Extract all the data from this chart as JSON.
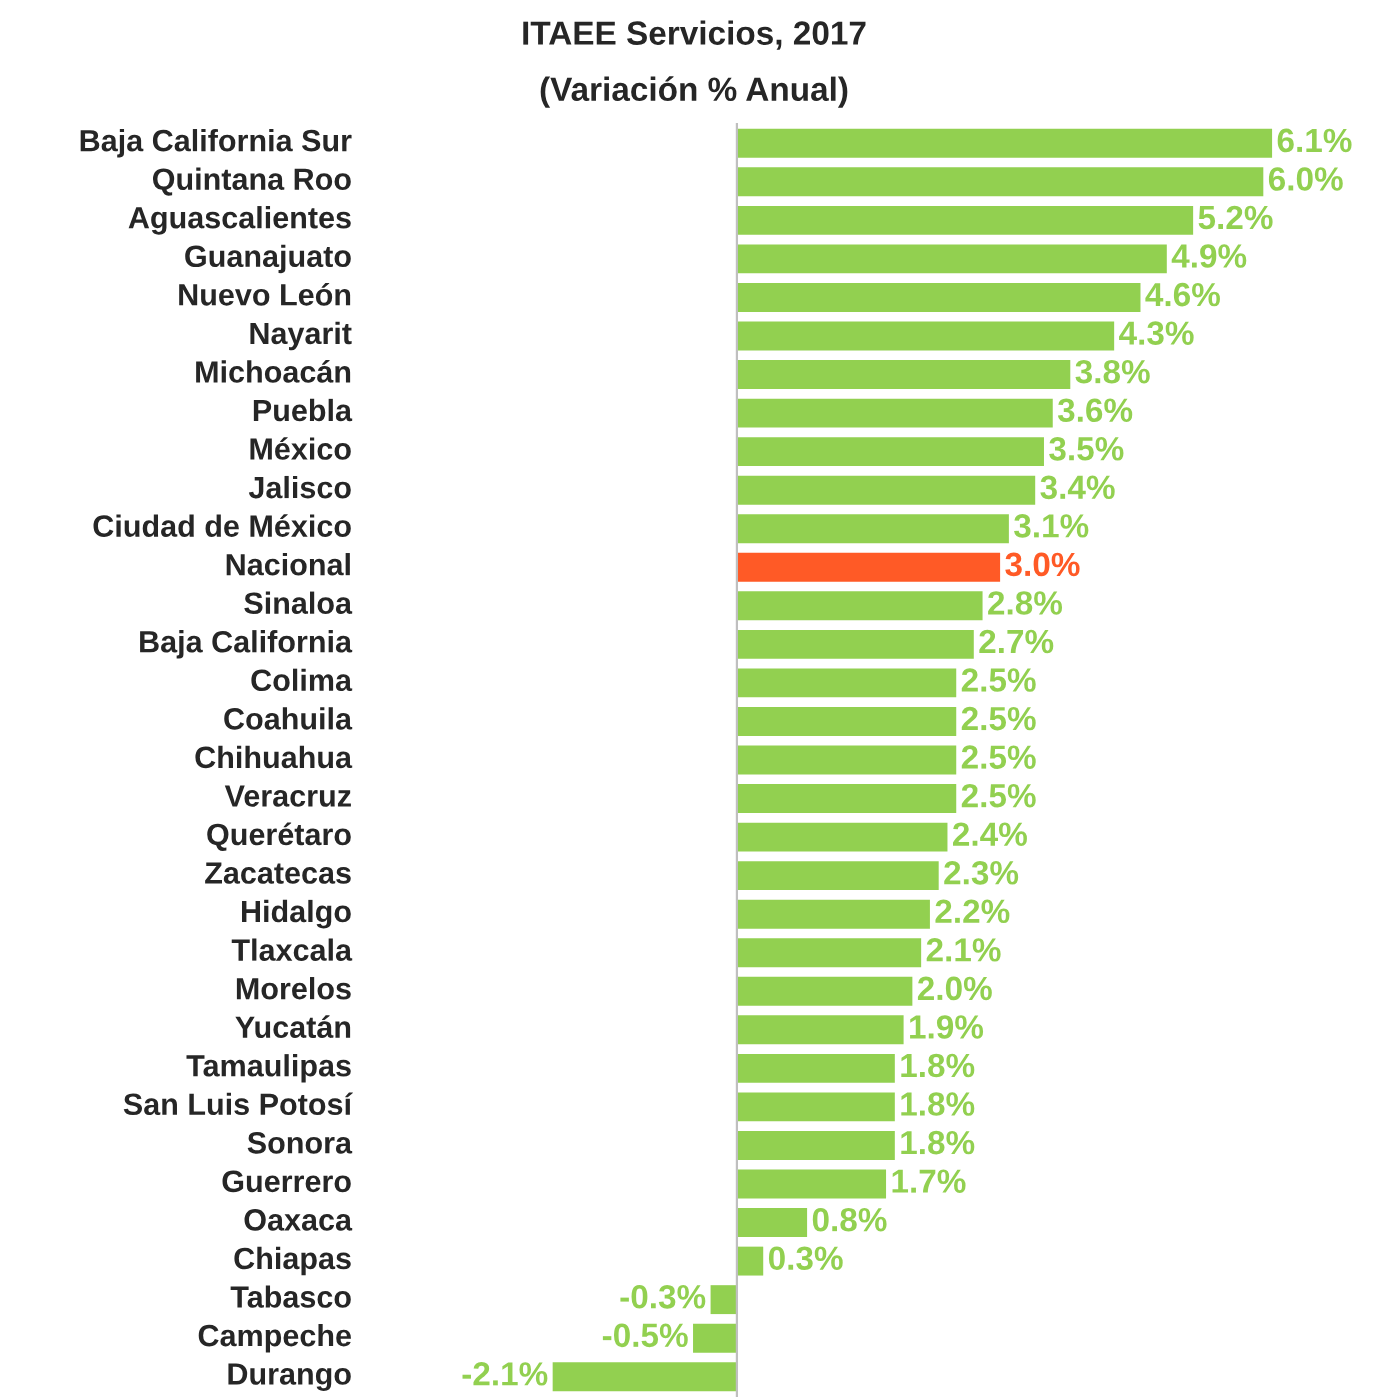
{
  "chart_data": {
    "type": "bar",
    "orientation": "horizontal",
    "title": "ITAEE Servicios, 2017",
    "subtitle": "(Variación % Anual)",
    "categories": [
      "Baja California Sur",
      "Quintana Roo",
      "Aguascalientes",
      "Guanajuato",
      "Nuevo León",
      "Nayarit",
      "Michoacán",
      "Puebla",
      "México",
      "Jalisco",
      "Ciudad de México",
      "Nacional",
      "Sinaloa",
      "Baja California",
      "Colima",
      "Coahuila",
      "Chihuahua",
      "Veracruz",
      "Querétaro",
      "Zacatecas",
      "Hidalgo",
      "Tlaxcala",
      "Morelos",
      "Yucatán",
      "Tamaulipas",
      "San Luis Potosí",
      "Sonora",
      "Guerrero",
      "Oaxaca",
      "Chiapas",
      "Tabasco",
      "Campeche",
      "Durango"
    ],
    "values": [
      6.1,
      6.0,
      5.2,
      4.9,
      4.6,
      4.3,
      3.8,
      3.6,
      3.5,
      3.4,
      3.1,
      3.0,
      2.8,
      2.7,
      2.5,
      2.5,
      2.5,
      2.5,
      2.4,
      2.3,
      2.2,
      2.1,
      2.0,
      1.9,
      1.8,
      1.8,
      1.8,
      1.7,
      0.8,
      0.3,
      -0.3,
      -0.5,
      -2.1
    ],
    "value_labels": [
      "6.1%",
      "6.0%",
      "5.2%",
      "4.9%",
      "4.6%",
      "4.3%",
      "3.8%",
      "3.6%",
      "3.5%",
      "3.4%",
      "3.1%",
      "3.0%",
      "2.8%",
      "2.7%",
      "2.5%",
      "2.5%",
      "2.5%",
      "2.5%",
      "2.4%",
      "2.3%",
      "2.2%",
      "2.1%",
      "2.0%",
      "1.9%",
      "1.8%",
      "1.8%",
      "1.8%",
      "1.7%",
      "0.8%",
      "0.3%",
      "-0.3%",
      "-0.5%",
      "-2.1%"
    ],
    "colors": [
      "#92d050",
      "#92d050",
      "#92d050",
      "#92d050",
      "#92d050",
      "#92d050",
      "#92d050",
      "#92d050",
      "#92d050",
      "#92d050",
      "#92d050",
      "#ff5a26",
      "#92d050",
      "#92d050",
      "#92d050",
      "#92d050",
      "#92d050",
      "#92d050",
      "#92d050",
      "#92d050",
      "#92d050",
      "#92d050",
      "#92d050",
      "#92d050",
      "#92d050",
      "#92d050",
      "#92d050",
      "#92d050",
      "#92d050",
      "#92d050",
      "#92d050",
      "#92d050",
      "#92d050"
    ]
  }
}
